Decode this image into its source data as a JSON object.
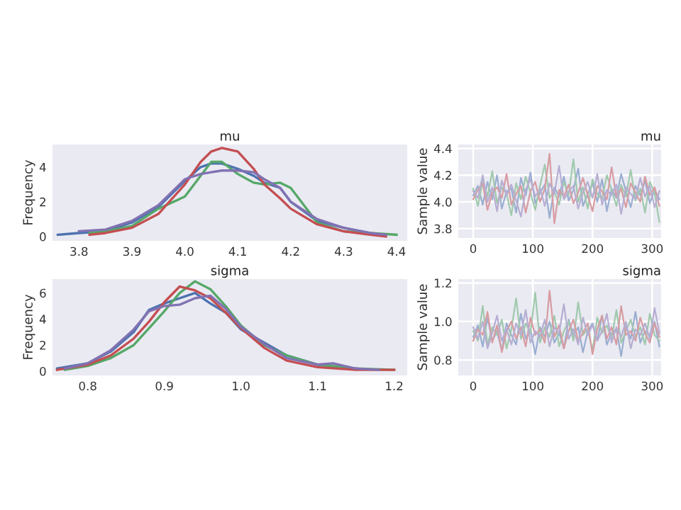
{
  "chart_data": [
    {
      "type": "line",
      "title": "mu",
      "ylabel": "Frequency",
      "xlim": [
        3.75,
        4.42
      ],
      "ylim": [
        -0.25,
        5.3
      ],
      "xticks": [
        3.8,
        3.9,
        {
          "value": 4.0,
          "label": "4.0"
        },
        4.1,
        4.2,
        4.3,
        4.4
      ],
      "yticks": [
        0,
        2,
        4
      ],
      "grid": false,
      "series": [
        {
          "color": "#4c72b0",
          "x": [
            3.76,
            3.8,
            3.85,
            3.9,
            3.95,
            4.0,
            4.03,
            4.05,
            4.07,
            4.1,
            4.13,
            4.15,
            4.18,
            4.2,
            4.25,
            4.3,
            4.35
          ],
          "values": [
            0.1,
            0.2,
            0.3,
            0.8,
            1.7,
            3.2,
            4.0,
            4.2,
            4.2,
            3.9,
            3.5,
            3.1,
            2.8,
            2.0,
            0.9,
            0.5,
            0.2
          ]
        },
        {
          "color": "#55a868",
          "x": [
            3.82,
            3.85,
            3.9,
            3.95,
            4.0,
            4.03,
            4.05,
            4.07,
            4.1,
            4.13,
            4.15,
            4.18,
            4.2,
            4.25,
            4.3,
            4.35,
            4.4
          ],
          "values": [
            0.2,
            0.3,
            0.6,
            1.6,
            2.3,
            3.5,
            4.3,
            4.3,
            3.6,
            3.1,
            3.0,
            3.1,
            2.8,
            0.8,
            0.3,
            0.2,
            0.1
          ]
        },
        {
          "color": "#c44e52",
          "x": [
            3.82,
            3.85,
            3.9,
            3.95,
            4.0,
            4.03,
            4.05,
            4.07,
            4.1,
            4.13,
            4.15,
            4.18,
            4.2,
            4.25,
            4.3,
            4.35,
            4.38
          ],
          "values": [
            0.1,
            0.2,
            0.5,
            1.3,
            3.0,
            4.3,
            4.9,
            5.1,
            4.9,
            3.9,
            3.0,
            2.2,
            1.6,
            0.7,
            0.3,
            0.1,
            0.0
          ]
        },
        {
          "color": "#8172b2",
          "x": [
            3.8,
            3.85,
            3.9,
            3.95,
            4.0,
            4.03,
            4.05,
            4.07,
            4.1,
            4.13,
            4.15,
            4.18,
            4.2,
            4.25,
            4.3,
            4.35,
            4.38
          ],
          "values": [
            0.3,
            0.4,
            0.9,
            1.8,
            3.3,
            3.6,
            3.7,
            3.8,
            3.8,
            3.7,
            3.3,
            2.8,
            2.0,
            1.0,
            0.5,
            0.2,
            0.1
          ]
        }
      ]
    },
    {
      "type": "line",
      "title": "mu",
      "ylabel": "Sample value",
      "xlim": [
        -25,
        315
      ],
      "ylim": [
        3.73,
        4.43
      ],
      "xticks": [
        0,
        100,
        200,
        300
      ],
      "yticks": [
        3.8,
        {
          "value": 4.0,
          "label": "4.0"
        },
        4.2,
        4.4
      ],
      "grid": true,
      "x": [
        0,
        8,
        16,
        24,
        32,
        40,
        48,
        56,
        64,
        72,
        80,
        88,
        96,
        104,
        112,
        120,
        128,
        136,
        144,
        152,
        160,
        168,
        176,
        184,
        192,
        200,
        208,
        216,
        224,
        232,
        240,
        248,
        256,
        264,
        272,
        280,
        288,
        296,
        304,
        312
      ],
      "series": [
        {
          "color": "#9baed1",
          "values": [
            4.05,
            4.12,
            3.98,
            4.15,
            4.02,
            4.2,
            3.95,
            4.08,
            4.1,
            3.92,
            4.18,
            4.05,
            4.22,
            3.99,
            4.07,
            4.13,
            3.88,
            4.11,
            4.04,
            4.19,
            4.01,
            4.09,
            4.25,
            3.97,
            4.06,
            4.14,
            4.0,
            4.17,
            3.93,
            4.1,
            4.03,
            4.21,
            4.08,
            3.96,
            4.12,
            4.05,
            4.16,
            3.99,
            4.09,
            4.02
          ]
        },
        {
          "color": "#a0c9ad",
          "values": [
            4.1,
            3.97,
            4.16,
            4.04,
            4.23,
            3.99,
            4.11,
            4.06,
            3.9,
            4.14,
            4.02,
            4.19,
            4.07,
            3.94,
            4.12,
            4.28,
            4.03,
            4.08,
            3.98,
            4.15,
            4.05,
            4.32,
            4.0,
            4.11,
            3.95,
            4.17,
            4.06,
            4.02,
            4.2,
            4.09,
            3.97,
            4.13,
            4.04,
            4.24,
            4.01,
            4.1,
            3.92,
            4.15,
            4.07,
            3.85
          ]
        },
        {
          "color": "#d79ca2",
          "values": [
            4.02,
            4.09,
            4.14,
            3.94,
            4.07,
            4.11,
            4.03,
            4.21,
            3.98,
            4.06,
            4.12,
            3.92,
            4.08,
            4.15,
            4.0,
            4.1,
            4.36,
            3.84,
            4.09,
            4.04,
            4.13,
            3.99,
            4.07,
            4.18,
            4.05,
            3.93,
            4.12,
            4.08,
            4.02,
            4.26,
            4.04,
            4.1,
            3.96,
            4.14,
            4.07,
            4.0,
            4.19,
            4.05,
            4.11,
            3.97
          ]
        },
        {
          "color": "#b6aed2",
          "values": [
            4.08,
            4.03,
            4.2,
            4.0,
            4.11,
            3.93,
            4.16,
            4.05,
            4.13,
            4.01,
            3.89,
            4.09,
            4.17,
            4.04,
            4.1,
            3.97,
            4.14,
            4.06,
            4.27,
            4.02,
            4.08,
            4.12,
            3.95,
            4.07,
            4.15,
            4.03,
            4.21,
            3.98,
            4.09,
            4.05,
            4.13,
            3.91,
            4.11,
            4.06,
            4.02,
            4.18,
            4.04,
            4.12,
            3.96,
            4.08
          ]
        }
      ]
    },
    {
      "type": "line",
      "title": "sigma",
      "ylabel": "Frequency",
      "xlim": [
        0.754,
        1.217
      ],
      "ylim": [
        -0.33,
        7.07
      ],
      "xticks": [
        0.8,
        0.9,
        {
          "value": 1.0,
          "label": "1.0"
        },
        1.1,
        1.2
      ],
      "yticks": [
        0,
        2,
        4,
        6
      ],
      "grid": false,
      "series": [
        {
          "color": "#4c72b0",
          "x": [
            0.76,
            0.8,
            0.83,
            0.86,
            0.88,
            0.9,
            0.92,
            0.94,
            0.96,
            0.98,
            1.0,
            1.03,
            1.06,
            1.1,
            1.15
          ],
          "values": [
            0.2,
            0.6,
            1.5,
            3.0,
            4.7,
            5.2,
            5.6,
            6.0,
            5.2,
            4.5,
            3.2,
            2.2,
            1.2,
            0.5,
            0.2
          ]
        },
        {
          "color": "#55a868",
          "x": [
            0.77,
            0.8,
            0.83,
            0.86,
            0.88,
            0.9,
            0.92,
            0.94,
            0.96,
            0.98,
            1.0,
            1.03,
            1.06,
            1.1,
            1.15,
            1.2
          ],
          "values": [
            0.1,
            0.4,
            1.0,
            2.0,
            3.3,
            4.6,
            6.0,
            6.9,
            6.3,
            5.0,
            3.5,
            2.0,
            1.2,
            0.5,
            0.2,
            0.1
          ]
        },
        {
          "color": "#c44e52",
          "x": [
            0.76,
            0.8,
            0.83,
            0.86,
            0.88,
            0.9,
            0.92,
            0.94,
            0.96,
            0.98,
            1.0,
            1.03,
            1.06,
            1.1,
            1.15,
            1.2
          ],
          "values": [
            0.1,
            0.5,
            1.2,
            2.5,
            3.8,
            5.3,
            6.5,
            6.2,
            5.6,
            4.5,
            3.3,
            1.8,
            0.8,
            0.3,
            0.1,
            0.1
          ]
        },
        {
          "color": "#8172b2",
          "x": [
            0.77,
            0.8,
            0.83,
            0.86,
            0.88,
            0.9,
            0.92,
            0.94,
            0.96,
            0.98,
            1.0,
            1.03,
            1.06,
            1.1,
            1.12,
            1.15,
            1.18
          ],
          "values": [
            0.2,
            0.6,
            1.6,
            3.2,
            4.6,
            5.0,
            5.1,
            5.6,
            5.8,
            4.8,
            3.4,
            2.1,
            1.0,
            0.5,
            0.6,
            0.2,
            0.1
          ]
        }
      ]
    },
    {
      "type": "line",
      "title": "sigma",
      "ylabel": "Sample value",
      "xlim": [
        -25,
        315
      ],
      "ylim": [
        0.72,
        1.22
      ],
      "xticks": [
        0,
        100,
        200,
        300
      ],
      "yticks": [
        0.8,
        {
          "value": 1.0,
          "label": "1.0"
        },
        1.2
      ],
      "grid": true,
      "x": [
        0,
        8,
        16,
        24,
        32,
        40,
        48,
        56,
        64,
        72,
        80,
        88,
        96,
        104,
        112,
        120,
        128,
        136,
        144,
        152,
        160,
        168,
        176,
        184,
        192,
        200,
        208,
        216,
        224,
        232,
        240,
        248,
        256,
        264,
        272,
        280,
        288,
        296,
        304,
        312
      ],
      "series": [
        {
          "color": "#9baed1",
          "values": [
            0.92,
            0.98,
            0.87,
            1.02,
            0.9,
            0.95,
            0.85,
            0.99,
            0.93,
            0.88,
            1.04,
            0.91,
            0.96,
            0.83,
            0.97,
            0.92,
            1.0,
            0.89,
            0.94,
            0.86,
            1.01,
            0.93,
            0.97,
            0.84,
            0.95,
            0.99,
            0.9,
            1.03,
            0.88,
            0.94,
            0.96,
            0.82,
            0.98,
            0.91,
            1.05,
            0.89,
            0.95,
            0.93,
            1.0,
            0.87
          ]
        },
        {
          "color": "#a0c9ad",
          "values": [
            0.95,
            0.9,
            1.08,
            0.88,
            0.97,
            0.93,
            1.01,
            0.86,
            0.96,
            1.12,
            0.91,
            0.99,
            0.94,
            1.15,
            0.89,
            0.97,
            0.92,
            1.03,
            0.87,
            0.95,
            1.0,
            0.9,
            1.1,
            0.93,
            0.96,
            0.85,
            1.02,
            0.94,
            0.98,
            0.91,
            1.06,
            0.89,
            0.95,
            1.01,
            0.92,
            0.97,
            0.88,
            1.04,
            0.93,
            0.9
          ]
        },
        {
          "color": "#d79ca2",
          "values": [
            0.9,
            0.96,
            0.93,
            1.05,
            0.89,
            0.98,
            0.84,
            0.95,
            1.0,
            0.91,
            0.97,
            0.87,
            1.02,
            0.93,
            0.96,
            0.89,
            1.16,
            0.92,
            0.98,
            0.86,
            0.95,
            1.01,
            0.9,
            0.94,
            0.99,
            0.83,
            0.96,
            1.03,
            0.91,
            0.97,
            0.88,
            1.08,
            0.93,
            0.95,
            0.9,
            1.02,
            0.94,
            0.89,
            0.99,
            0.92
          ]
        },
        {
          "color": "#b6aed2",
          "values": [
            0.97,
            0.91,
            1.0,
            0.86,
            0.94,
            1.03,
            0.9,
            0.96,
            0.88,
            0.99,
            0.93,
            1.06,
            0.89,
            0.95,
            0.92,
            1.01,
            0.87,
            0.97,
            0.94,
            1.09,
            0.91,
            0.96,
            0.88,
            1.02,
            0.93,
            0.98,
            0.9,
            0.95,
            1.04,
            0.89,
            0.97,
            0.92,
            1.0,
            0.86,
            0.96,
            0.93,
            0.99,
            0.91,
            1.07,
            0.94
          ]
        }
      ]
    }
  ]
}
